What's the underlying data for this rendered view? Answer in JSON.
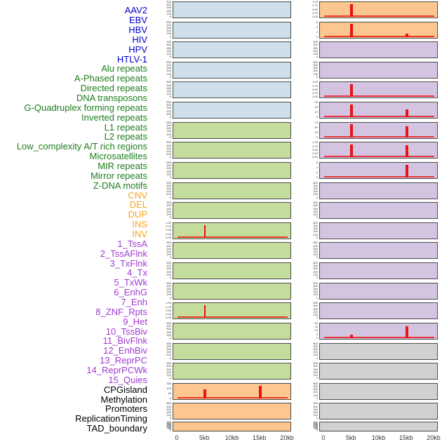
{
  "x_axis": {
    "tick_labels": [
      "0",
      "5kb",
      "10kb",
      "15kb",
      "20kb"
    ]
  },
  "colors": {
    "background": "#ffffff",
    "panel_border": "#4d4d4d",
    "spike_red": "#ec1212",
    "tick_text": "#3a3a3a",
    "groups": {
      "virus": {
        "panel": "#cddfe9",
        "label": "#0000cd"
      },
      "repeat": {
        "panel": "#c4dd9d",
        "label": "#1d7d1d"
      },
      "variant": {
        "panel": "#fbc78f",
        "label": "#f5a61d"
      },
      "state": {
        "panel": "#d3c4e1",
        "label": "#a13ad2"
      },
      "other": {
        "panel": "#d1d1d1",
        "label": "#000000"
      }
    }
  },
  "chart_data": {
    "type": "bar",
    "x_unit": "kb",
    "x_range": [
      0,
      20
    ],
    "x_ticks": [
      "0",
      "5kb",
      "10kb",
      "15kb",
      "20kb"
    ],
    "grid": false,
    "legend": "none",
    "layout": "44 tracks in 2 columns x 22 rows, column-major; labels listed down the left",
    "tracks": [
      {
        "name": "AAV2",
        "group": "virus",
        "yticks": [
          "500",
          "400",
          "300",
          "200",
          "100",
          "0"
        ],
        "ylim_top": 525,
        "bars": [],
        "baseline": false
      },
      {
        "name": "EBV",
        "group": "virus",
        "yticks": [
          "500",
          "400",
          "300",
          "200",
          "100",
          "0"
        ],
        "ylim_top": 525,
        "bars": [],
        "baseline": false
      },
      {
        "name": "HBV",
        "group": "virus",
        "yticks": [
          "500",
          "400",
          "300",
          "200",
          "100",
          "0"
        ],
        "ylim_top": 525,
        "bars": [],
        "baseline": false
      },
      {
        "name": "HIV",
        "group": "virus",
        "yticks": [
          "500",
          "400",
          "300",
          "200",
          "100",
          "0"
        ],
        "ylim_top": 525,
        "bars": [],
        "baseline": false
      },
      {
        "name": "HPV",
        "group": "virus",
        "yticks": [
          "500",
          "400",
          "300",
          "200",
          "100",
          "0"
        ],
        "ylim_top": 525,
        "bars": [],
        "baseline": false
      },
      {
        "name": "HTLV-1",
        "group": "virus",
        "yticks": [
          "500",
          "400",
          "300",
          "200",
          "100",
          "0"
        ],
        "ylim_top": 525,
        "bars": [],
        "baseline": false
      },
      {
        "name": "Alu repeats",
        "group": "repeat",
        "yticks": [
          "500",
          "400",
          "300",
          "200",
          "100",
          "0"
        ],
        "ylim_top": 525,
        "bars": [],
        "baseline": false
      },
      {
        "name": "A-Phased repeats",
        "group": "repeat",
        "yticks": [
          "500",
          "400",
          "300",
          "200",
          "100",
          "0"
        ],
        "ylim_top": 525,
        "bars": [],
        "baseline": false
      },
      {
        "name": "Directed repeats",
        "group": "repeat",
        "yticks": [
          "500",
          "400",
          "300",
          "200",
          "100",
          "0"
        ],
        "ylim_top": 525,
        "bars": [],
        "baseline": false
      },
      {
        "name": "DNA transposons",
        "group": "repeat",
        "yticks": [
          "500",
          "400",
          "300",
          "200",
          "100",
          "0"
        ],
        "ylim_top": 525,
        "bars": [],
        "baseline": false
      },
      {
        "name": "G-Quadruplex forming repeats",
        "group": "repeat",
        "yticks": [
          "500",
          "400",
          "300",
          "200",
          "100",
          "0"
        ],
        "ylim_top": 525,
        "bars": [],
        "baseline": false
      },
      {
        "name": "Inverted repeats",
        "group": "repeat",
        "yticks": [
          "1.00",
          "0.75",
          "0.50",
          "0.25",
          "0.00"
        ],
        "ylim_top": 1.05,
        "bars": [
          {
            "x_kb": 5,
            "value": 1.0,
            "w": 2
          }
        ],
        "baseline": true
      },
      {
        "name": "L1 repeats",
        "group": "repeat",
        "yticks": [
          "500",
          "400",
          "300",
          "200",
          "100",
          "0"
        ],
        "ylim_top": 525,
        "bars": [],
        "baseline": false
      },
      {
        "name": "L2 repeats",
        "group": "repeat",
        "yticks": [
          "500",
          "400",
          "300",
          "200",
          "100",
          "0"
        ],
        "ylim_top": 525,
        "bars": [],
        "baseline": false
      },
      {
        "name": "Low_complexity A/T rich regions",
        "group": "repeat",
        "yticks": [
          "500",
          "400",
          "300",
          "200",
          "100",
          "0"
        ],
        "ylim_top": 525,
        "bars": [],
        "baseline": false
      },
      {
        "name": "Microsatellites",
        "group": "repeat",
        "yticks": [
          "1.00",
          "0.75",
          "0.50",
          "0.25",
          "0.00"
        ],
        "ylim_top": 1.05,
        "bars": [
          {
            "x_kb": 5,
            "value": 1.0,
            "w": 2
          }
        ],
        "baseline": true
      },
      {
        "name": "MIR repeats",
        "group": "repeat",
        "yticks": [
          "500",
          "400",
          "300",
          "200",
          "100",
          "0"
        ],
        "ylim_top": 525,
        "bars": [],
        "baseline": false
      },
      {
        "name": "Mirror repeats",
        "group": "repeat",
        "yticks": [
          "500",
          "400",
          "300",
          "200",
          "100",
          "0"
        ],
        "ylim_top": 525,
        "bars": [],
        "baseline": false
      },
      {
        "name": "Z-DNA motifs",
        "group": "repeat",
        "yticks": [
          "500",
          "400",
          "300",
          "200",
          "100",
          "0"
        ],
        "ylim_top": 525,
        "bars": [],
        "baseline": false
      },
      {
        "name": "CNV",
        "group": "variant",
        "yticks": [
          "150",
          "100",
          "50",
          "0"
        ],
        "ylim_top": 170,
        "bars": [
          {
            "x_kb": 5,
            "value": 110,
            "w": 4
          },
          {
            "x_kb": 15,
            "value": 162,
            "w": 4
          }
        ],
        "baseline": true
      },
      {
        "name": "DEL",
        "group": "variant",
        "yticks": [
          "500",
          "400",
          "300",
          "200",
          "100",
          "0"
        ],
        "ylim_top": 525,
        "bars": [],
        "baseline": false
      },
      {
        "name": "DUP",
        "group": "variant",
        "yticks": [
          "350",
          "300",
          "250",
          "200",
          "150",
          "100",
          "50",
          "0"
        ],
        "ylim_top": 370,
        "bars": [],
        "baseline": false
      },
      {
        "name": "INS",
        "group": "variant",
        "yticks": [
          "1.00",
          "0.75",
          "0.50",
          "0.25",
          "0.00"
        ],
        "ylim_top": 1.05,
        "bars": [
          {
            "x_kb": 5,
            "value": 1.0,
            "w": 4
          }
        ],
        "baseline": true
      },
      {
        "name": "INV",
        "group": "variant",
        "yticks": [
          "6",
          "4",
          "2",
          "0"
        ],
        "ylim_top": 6.8,
        "bars": [
          {
            "x_kb": 5,
            "value": 6.5,
            "w": 4
          },
          {
            "x_kb": 15,
            "value": 1.5,
            "w": 4
          }
        ],
        "baseline": true
      },
      {
        "name": "1_TssA",
        "group": "state",
        "yticks": [
          "500",
          "400",
          "300",
          "200",
          "100",
          "0"
        ],
        "ylim_top": 525,
        "bars": [],
        "baseline": false
      },
      {
        "name": "2_TssAFlnk",
        "group": "state",
        "yticks": [
          "500",
          "400",
          "300",
          "200",
          "100",
          "0"
        ],
        "ylim_top": 525,
        "bars": [],
        "baseline": false
      },
      {
        "name": "3_TxFlnk",
        "group": "state",
        "yticks": [
          "1.00",
          "0.75",
          "0.50",
          "0.25",
          "0.00"
        ],
        "ylim_top": 1.05,
        "bars": [
          {
            "x_kb": 5,
            "value": 1.0,
            "w": 4
          }
        ],
        "baseline": true
      },
      {
        "name": "4_Tx",
        "group": "state",
        "yticks": [
          "30",
          "20",
          "10",
          "0"
        ],
        "ylim_top": 33,
        "bars": [
          {
            "x_kb": 5,
            "value": 32,
            "w": 4
          },
          {
            "x_kb": 15,
            "value": 20,
            "w": 4
          }
        ],
        "baseline": true
      },
      {
        "name": "5_TxWk",
        "group": "state",
        "yticks": [
          "75",
          "50",
          "25",
          "0"
        ],
        "ylim_top": 82,
        "bars": [
          {
            "x_kb": 5,
            "value": 80,
            "w": 4
          },
          {
            "x_kb": 15,
            "value": 70,
            "w": 4
          }
        ],
        "baseline": true
      },
      {
        "name": "6_EnhG",
        "group": "state",
        "yticks": [
          "1.00",
          "0.75",
          "0.50",
          "0.25",
          "0.00"
        ],
        "ylim_top": 1.05,
        "bars": [
          {
            "x_kb": 5,
            "value": 1.0,
            "w": 4
          },
          {
            "x_kb": 15,
            "value": 0.98,
            "w": 4
          }
        ],
        "baseline": true
      },
      {
        "name": "7_Enh",
        "group": "state",
        "yticks": [
          "6",
          "4",
          "2",
          "0"
        ],
        "ylim_top": 6.6,
        "bars": [
          {
            "x_kb": 15,
            "value": 6.3,
            "w": 4
          }
        ],
        "baseline": true
      },
      {
        "name": "8_ZNF_Rpts",
        "group": "state",
        "yticks": [
          "500",
          "400",
          "300",
          "200",
          "100",
          "0"
        ],
        "ylim_top": 525,
        "bars": [],
        "baseline": false
      },
      {
        "name": "9_Het",
        "group": "state",
        "yticks": [
          "500",
          "400",
          "300",
          "200",
          "100",
          "0"
        ],
        "ylim_top": 525,
        "bars": [],
        "baseline": false
      },
      {
        "name": "10_TssBiv",
        "group": "state",
        "yticks": [
          "500",
          "400",
          "300",
          "200",
          "100",
          "0"
        ],
        "ylim_top": 525,
        "bars": [],
        "baseline": false
      },
      {
        "name": "11_BivFlnk",
        "group": "state",
        "yticks": [
          "500",
          "400",
          "300",
          "200",
          "100",
          "0"
        ],
        "ylim_top": 525,
        "bars": [],
        "baseline": false
      },
      {
        "name": "12_EnhBiv",
        "group": "state",
        "yticks": [
          "500",
          "400",
          "300",
          "200",
          "100",
          "0"
        ],
        "ylim_top": 525,
        "bars": [],
        "baseline": false
      },
      {
        "name": "13_ReprPC",
        "group": "state",
        "yticks": [
          "500",
          "400",
          "300",
          "200",
          "100",
          "0"
        ],
        "ylim_top": 525,
        "bars": [],
        "baseline": false
      },
      {
        "name": "14_ReprPCWk",
        "group": "state",
        "yticks": [
          "500",
          "400",
          "300",
          "200",
          "100",
          "0"
        ],
        "ylim_top": 525,
        "bars": [],
        "baseline": false
      },
      {
        "name": "15_Quies",
        "group": "state",
        "yticks": [
          "20",
          "15",
          "10",
          "5",
          "0"
        ],
        "ylim_top": 22,
        "bars": [
          {
            "x_kb": 5,
            "value": 6,
            "w": 4
          },
          {
            "x_kb": 15,
            "value": 19.5,
            "w": 4
          }
        ],
        "baseline": true
      },
      {
        "name": "CPGisland",
        "group": "other",
        "yticks": [
          "500",
          "400",
          "300",
          "200",
          "100",
          "0"
        ],
        "ylim_top": 525,
        "bars": [],
        "baseline": false
      },
      {
        "name": "Methylation",
        "group": "other",
        "yticks": [
          "500",
          "400",
          "300",
          "200",
          "100",
          "0"
        ],
        "ylim_top": 525,
        "bars": [],
        "baseline": false
      },
      {
        "name": "Promoters",
        "group": "other",
        "yticks": [
          "500",
          "400",
          "300",
          "200",
          "100",
          "0"
        ],
        "ylim_top": 525,
        "bars": [],
        "baseline": false
      },
      {
        "name": "ReplicationTiming",
        "group": "other",
        "yticks": [
          "500",
          "400",
          "300",
          "200",
          "100",
          "0"
        ],
        "ylim_top": 525,
        "bars": [],
        "baseline": false
      },
      {
        "name": "TAD_boundary",
        "group": "other",
        "yticks": [
          "350",
          "300",
          "250",
          "200",
          "150",
          "100",
          "50",
          "0"
        ],
        "ylim_top": 370,
        "bars": [],
        "baseline": false
      }
    ]
  }
}
